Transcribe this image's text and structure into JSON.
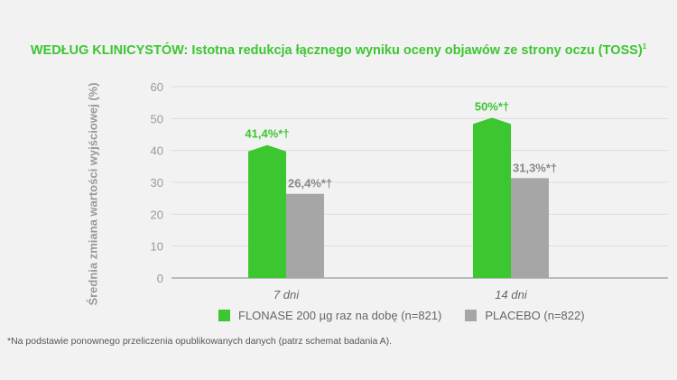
{
  "colors": {
    "accent": "#3cc630",
    "placebo": "#a6a6a6",
    "axis": "#999999"
  },
  "title": {
    "main": "WEDŁUG KLINICYSTÓW: Istotna redukcja łącznego wyniku oceny objawów ze strony oczu (TOSS)",
    "superscript": "1"
  },
  "chart_data": {
    "type": "bar",
    "title": "WEDŁUG KLINICYSTÓW: Istotna redukcja łącznego wyniku oceny objawów ze strony oczu (TOSS)",
    "xlabel": "",
    "ylabel": "Średnia zmiana wartości wyjściowej (%)",
    "ylim": [
      0,
      60
    ],
    "yticks": [
      0,
      10,
      20,
      30,
      40,
      50,
      60
    ],
    "categories": [
      "7 dni",
      "14 dni"
    ],
    "series": [
      {
        "name": "FLONASE 200 µg raz na dobę (n=821)",
        "values": [
          41.4,
          50
        ],
        "labels": [
          "41,4%*†",
          "50%*†"
        ],
        "color": "#3cc630"
      },
      {
        "name": "PLACEBO (n=822)",
        "values": [
          26.4,
          31.3
        ],
        "labels": [
          "26,4%*†",
          "31,3%*†"
        ],
        "color": "#a6a6a6"
      }
    ],
    "grid": true,
    "legend_position": "bottom"
  },
  "footnote": "*Na podstawie ponownego przeliczenia opublikowanych danych (patrz schemat badania A)."
}
